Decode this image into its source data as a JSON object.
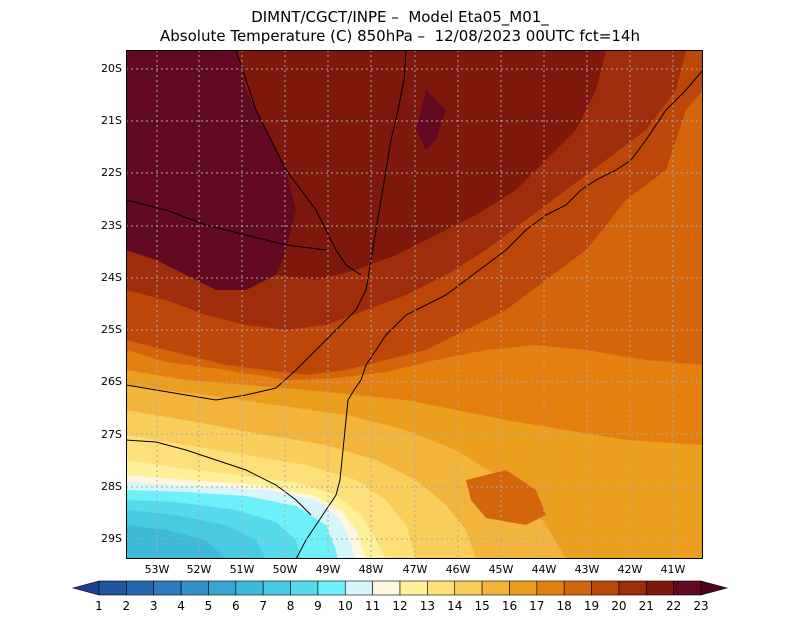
{
  "title_line1": "DIMNT/CGCT/INPE –  Model Eta05_M01_",
  "title_line2": "Absolute Temperature (C) 850hPa –  12/08/2023 00UTC fct=14h",
  "lat_labels": [
    "20S",
    "21S",
    "22S",
    "23S",
    "24S",
    "25S",
    "26S",
    "27S",
    "28S",
    "29S"
  ],
  "lon_labels": [
    "53W",
    "52W",
    "51W",
    "50W",
    "49W",
    "48W",
    "47W",
    "46W",
    "45W",
    "44W",
    "43W",
    "42W",
    "41W"
  ],
  "colorbar": {
    "labels": [
      "1",
      "2",
      "3",
      "4",
      "5",
      "6",
      "7",
      "8",
      "9",
      "10",
      "11",
      "12",
      "13",
      "14",
      "15",
      "16",
      "17",
      "18",
      "19",
      "20",
      "21",
      "22",
      "23"
    ],
    "colors": [
      "#1a3f8f",
      "#1e56a0",
      "#2566ae",
      "#2d7bbe",
      "#3390c4",
      "#39a5d0",
      "#3cbad8",
      "#47cbe0",
      "#55dbeb",
      "#6ef0fa",
      "#d6f6fb",
      "#fff7df",
      "#fff09a",
      "#fde07a",
      "#f8cd5a",
      "#f2b43a",
      "#ec9f1e",
      "#e3800f",
      "#d4650b",
      "#bd4709",
      "#9e2d0b",
      "#7e180d",
      "#620922",
      "#4a0519"
    ]
  },
  "colors": {
    "grid": "#aaaaaa",
    "border": "#000000"
  }
}
